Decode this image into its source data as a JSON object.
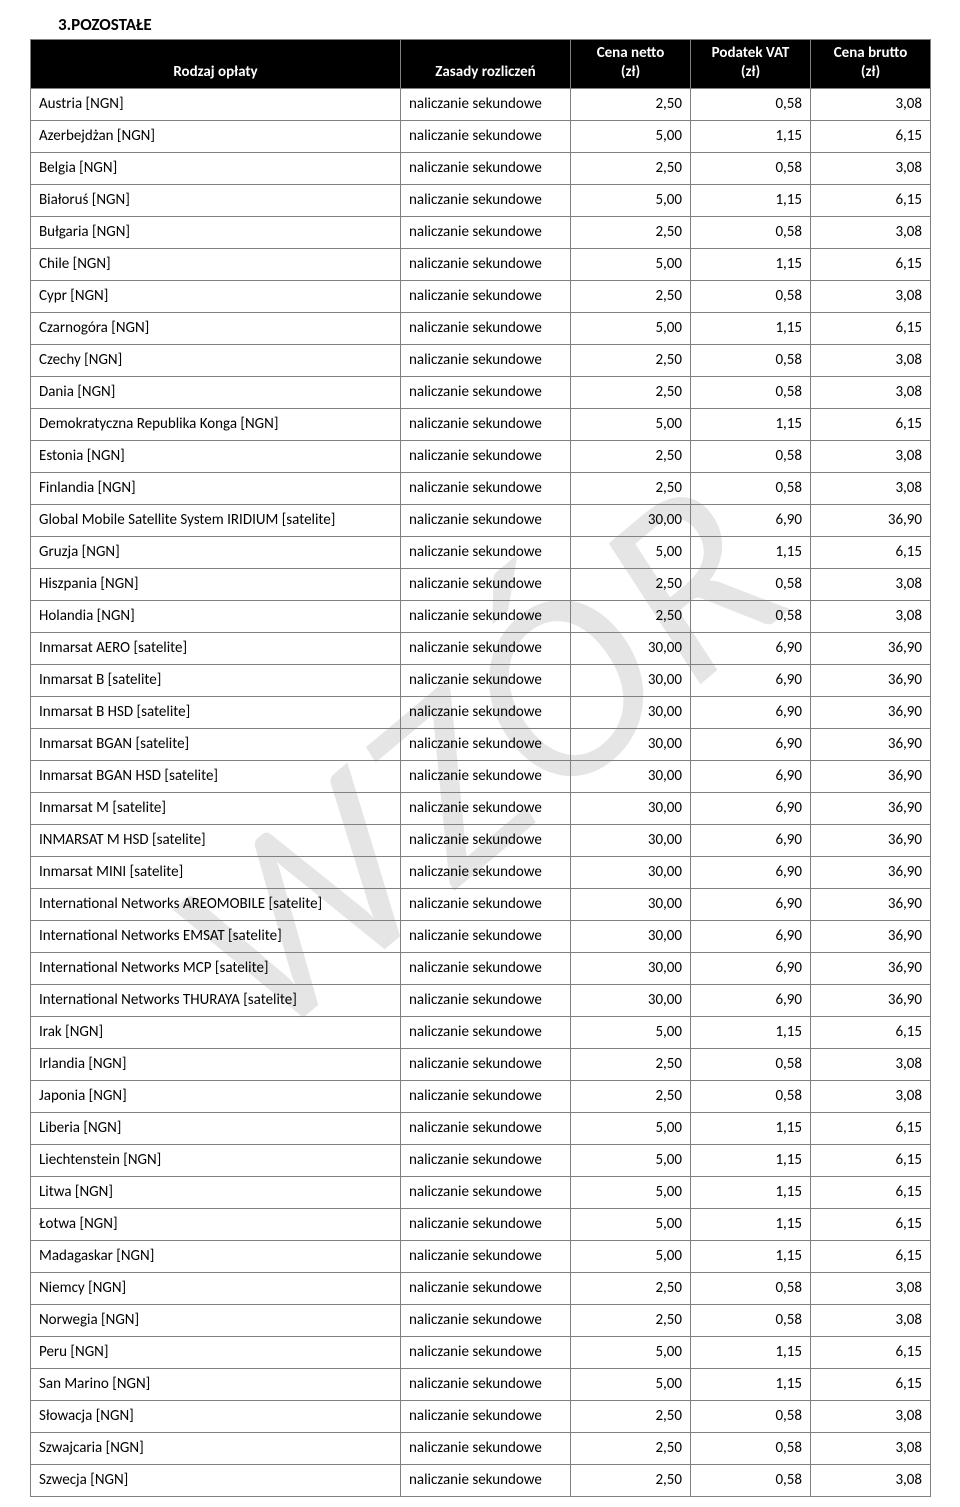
{
  "watermark_text": "WZÓR",
  "section_title": "3.POZOSTAŁE",
  "table": {
    "headers": {
      "col1": "Rodzaj opłaty",
      "col2": "Zasady rozliczeń",
      "col3_line1": "Cena netto",
      "col3_line2": "(zł)",
      "col4_line1": "Podatek VAT",
      "col4_line2": "(zł)",
      "col5_line1": "Cena brutto",
      "col5_line2": "(zł)"
    },
    "header_bg": "#000000",
    "header_fg": "#ffffff",
    "border_color": "#808080",
    "font_family": "Calibri, Arial, sans-serif",
    "header_fontsize": 15,
    "cell_fontsize": 15,
    "rows": [
      {
        "name": "Austria [NGN]",
        "rule": "naliczanie sekundowe",
        "net": "2,50",
        "vat": "0,58",
        "gross": "3,08"
      },
      {
        "name": "Azerbejdżan [NGN]",
        "rule": "naliczanie sekundowe",
        "net": "5,00",
        "vat": "1,15",
        "gross": "6,15"
      },
      {
        "name": "Belgia [NGN]",
        "rule": "naliczanie sekundowe",
        "net": "2,50",
        "vat": "0,58",
        "gross": "3,08"
      },
      {
        "name": "Białoruś [NGN]",
        "rule": "naliczanie sekundowe",
        "net": "5,00",
        "vat": "1,15",
        "gross": "6,15"
      },
      {
        "name": "Bułgaria [NGN]",
        "rule": "naliczanie sekundowe",
        "net": "2,50",
        "vat": "0,58",
        "gross": "3,08"
      },
      {
        "name": "Chile [NGN]",
        "rule": "naliczanie sekundowe",
        "net": "5,00",
        "vat": "1,15",
        "gross": "6,15"
      },
      {
        "name": "Cypr [NGN]",
        "rule": "naliczanie sekundowe",
        "net": "2,50",
        "vat": "0,58",
        "gross": "3,08"
      },
      {
        "name": "Czarnogóra [NGN]",
        "rule": "naliczanie sekundowe",
        "net": "5,00",
        "vat": "1,15",
        "gross": "6,15"
      },
      {
        "name": "Czechy [NGN]",
        "rule": "naliczanie sekundowe",
        "net": "2,50",
        "vat": "0,58",
        "gross": "3,08"
      },
      {
        "name": "Dania [NGN]",
        "rule": "naliczanie sekundowe",
        "net": "2,50",
        "vat": "0,58",
        "gross": "3,08"
      },
      {
        "name": "Demokratyczna Republika Konga [NGN]",
        "rule": "naliczanie sekundowe",
        "net": "5,00",
        "vat": "1,15",
        "gross": "6,15"
      },
      {
        "name": "Estonia [NGN]",
        "rule": "naliczanie sekundowe",
        "net": "2,50",
        "vat": "0,58",
        "gross": "3,08"
      },
      {
        "name": "Finlandia [NGN]",
        "rule": "naliczanie sekundowe",
        "net": "2,50",
        "vat": "0,58",
        "gross": "3,08"
      },
      {
        "name": "Global Mobile Satellite System IRIDIUM [satelite]",
        "rule": "naliczanie sekundowe",
        "net": "30,00",
        "vat": "6,90",
        "gross": "36,90"
      },
      {
        "name": "Gruzja [NGN]",
        "rule": "naliczanie sekundowe",
        "net": "5,00",
        "vat": "1,15",
        "gross": "6,15"
      },
      {
        "name": "Hiszpania [NGN]",
        "rule": "naliczanie sekundowe",
        "net": "2,50",
        "vat": "0,58",
        "gross": "3,08"
      },
      {
        "name": "Holandia [NGN]",
        "rule": "naliczanie sekundowe",
        "net": "2,50",
        "vat": "0,58",
        "gross": "3,08"
      },
      {
        "name": "Inmarsat AERO [satelite]",
        "rule": "naliczanie sekundowe",
        "net": "30,00",
        "vat": "6,90",
        "gross": "36,90"
      },
      {
        "name": "Inmarsat B [satelite]",
        "rule": "naliczanie sekundowe",
        "net": "30,00",
        "vat": "6,90",
        "gross": "36,90"
      },
      {
        "name": "Inmarsat B HSD [satelite]",
        "rule": "naliczanie sekundowe",
        "net": "30,00",
        "vat": "6,90",
        "gross": "36,90"
      },
      {
        "name": "Inmarsat BGAN [satelite]",
        "rule": "naliczanie sekundowe",
        "net": "30,00",
        "vat": "6,90",
        "gross": "36,90"
      },
      {
        "name": "Inmarsat BGAN HSD [satelite]",
        "rule": "naliczanie sekundowe",
        "net": "30,00",
        "vat": "6,90",
        "gross": "36,90"
      },
      {
        "name": "Inmarsat M [satelite]",
        "rule": "naliczanie sekundowe",
        "net": "30,00",
        "vat": "6,90",
        "gross": "36,90"
      },
      {
        "name": "INMARSAT M HSD [satelite]",
        "rule": "naliczanie sekundowe",
        "net": "30,00",
        "vat": "6,90",
        "gross": "36,90"
      },
      {
        "name": "Inmarsat MINI [satelite]",
        "rule": "naliczanie sekundowe",
        "net": "30,00",
        "vat": "6,90",
        "gross": "36,90"
      },
      {
        "name": "International Networks AREOMOBILE [satelite]",
        "rule": "naliczanie sekundowe",
        "net": "30,00",
        "vat": "6,90",
        "gross": "36,90"
      },
      {
        "name": "International Networks EMSAT [satelite]",
        "rule": "naliczanie sekundowe",
        "net": "30,00",
        "vat": "6,90",
        "gross": "36,90"
      },
      {
        "name": "International Networks MCP [satelite]",
        "rule": "naliczanie sekundowe",
        "net": "30,00",
        "vat": "6,90",
        "gross": "36,90"
      },
      {
        "name": "International Networks THURAYA [satelite]",
        "rule": "naliczanie sekundowe",
        "net": "30,00",
        "vat": "6,90",
        "gross": "36,90"
      },
      {
        "name": "Irak [NGN]",
        "rule": "naliczanie sekundowe",
        "net": "5,00",
        "vat": "1,15",
        "gross": "6,15"
      },
      {
        "name": "Irlandia [NGN]",
        "rule": "naliczanie sekundowe",
        "net": "2,50",
        "vat": "0,58",
        "gross": "3,08"
      },
      {
        "name": "Japonia [NGN]",
        "rule": "naliczanie sekundowe",
        "net": "2,50",
        "vat": "0,58",
        "gross": "3,08"
      },
      {
        "name": "Liberia [NGN]",
        "rule": "naliczanie sekundowe",
        "net": "5,00",
        "vat": "1,15",
        "gross": "6,15"
      },
      {
        "name": "Liechtenstein [NGN]",
        "rule": "naliczanie sekundowe",
        "net": "5,00",
        "vat": "1,15",
        "gross": "6,15"
      },
      {
        "name": "Litwa [NGN]",
        "rule": "naliczanie sekundowe",
        "net": "5,00",
        "vat": "1,15",
        "gross": "6,15"
      },
      {
        "name": "Łotwa [NGN]",
        "rule": "naliczanie sekundowe",
        "net": "5,00",
        "vat": "1,15",
        "gross": "6,15"
      },
      {
        "name": "Madagaskar [NGN]",
        "rule": "naliczanie sekundowe",
        "net": "5,00",
        "vat": "1,15",
        "gross": "6,15"
      },
      {
        "name": "Niemcy [NGN]",
        "rule": "naliczanie sekundowe",
        "net": "2,50",
        "vat": "0,58",
        "gross": "3,08"
      },
      {
        "name": "Norwegia [NGN]",
        "rule": "naliczanie sekundowe",
        "net": "2,50",
        "vat": "0,58",
        "gross": "3,08"
      },
      {
        "name": "Peru [NGN]",
        "rule": "naliczanie sekundowe",
        "net": "5,00",
        "vat": "1,15",
        "gross": "6,15"
      },
      {
        "name": "San Marino [NGN]",
        "rule": "naliczanie sekundowe",
        "net": "5,00",
        "vat": "1,15",
        "gross": "6,15"
      },
      {
        "name": "Słowacja [NGN]",
        "rule": "naliczanie sekundowe",
        "net": "2,50",
        "vat": "0,58",
        "gross": "3,08"
      },
      {
        "name": "Szwajcaria [NGN]",
        "rule": "naliczanie sekundowe",
        "net": "2,50",
        "vat": "0,58",
        "gross": "3,08"
      },
      {
        "name": "Szwecja [NGN]",
        "rule": "naliczanie sekundowe",
        "net": "2,50",
        "vat": "0,58",
        "gross": "3,08"
      }
    ]
  }
}
